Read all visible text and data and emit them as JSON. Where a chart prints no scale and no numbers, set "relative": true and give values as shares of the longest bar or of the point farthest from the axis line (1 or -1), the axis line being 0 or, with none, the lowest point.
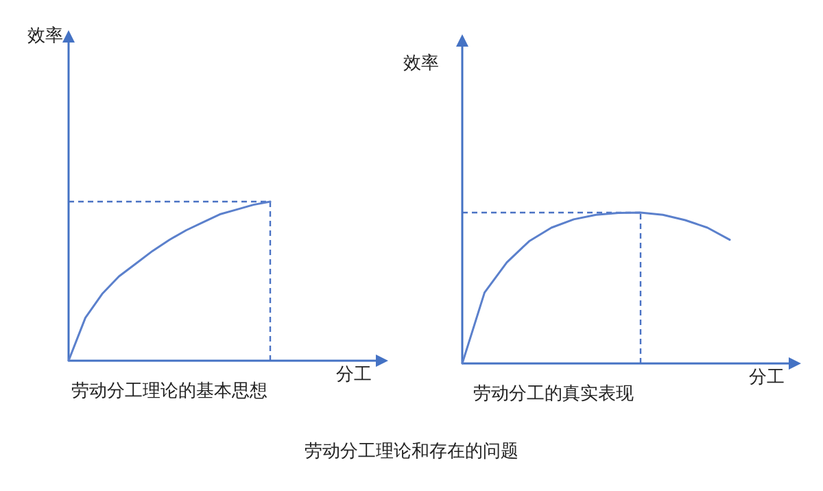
{
  "chart_data": [
    {
      "type": "line",
      "relative": true,
      "title": "劳动分工理论的基本思想",
      "xlabel": "分工",
      "ylabel": "效率",
      "line_style": "solid",
      "categories": [
        null,
        null,
        null,
        null,
        null,
        null,
        null,
        null,
        null,
        null,
        null,
        null,
        null
      ],
      "series": [
        {
          "color": "#5b80cc",
          "values": [
            0,
            0.27,
            0.42,
            0.53,
            0.61,
            0.69,
            0.76,
            0.82,
            0.87,
            0.92,
            0.95,
            0.98,
            1
          ]
        }
      ],
      "ref_lines": [
        {
          "axis": "y",
          "value": 1,
          "line_style": "dashed",
          "color": "#4a72c4"
        }
      ]
    },
    {
      "type": "line",
      "relative": true,
      "title": "劳动分工的真实表现",
      "xlabel": "分工",
      "ylabel": "效率",
      "line_style": "solid",
      "categories": [
        null,
        null,
        null,
        null,
        null,
        null,
        null,
        null,
        null,
        null,
        null,
        null,
        null
      ],
      "series": [
        {
          "color": "#5b80cc",
          "values": [
            0,
            0.47,
            0.67,
            0.81,
            0.9,
            0.955,
            0.985,
            0.998,
            1,
            0.985,
            0.95,
            0.9,
            0.82
          ]
        }
      ],
      "ref_lines": [
        {
          "axis": "y",
          "value": 1,
          "line_style": "dashed",
          "color": "#4a72c4"
        }
      ],
      "annotations": [
        "劳动分工理论和存在的问题"
      ]
    }
  ]
}
